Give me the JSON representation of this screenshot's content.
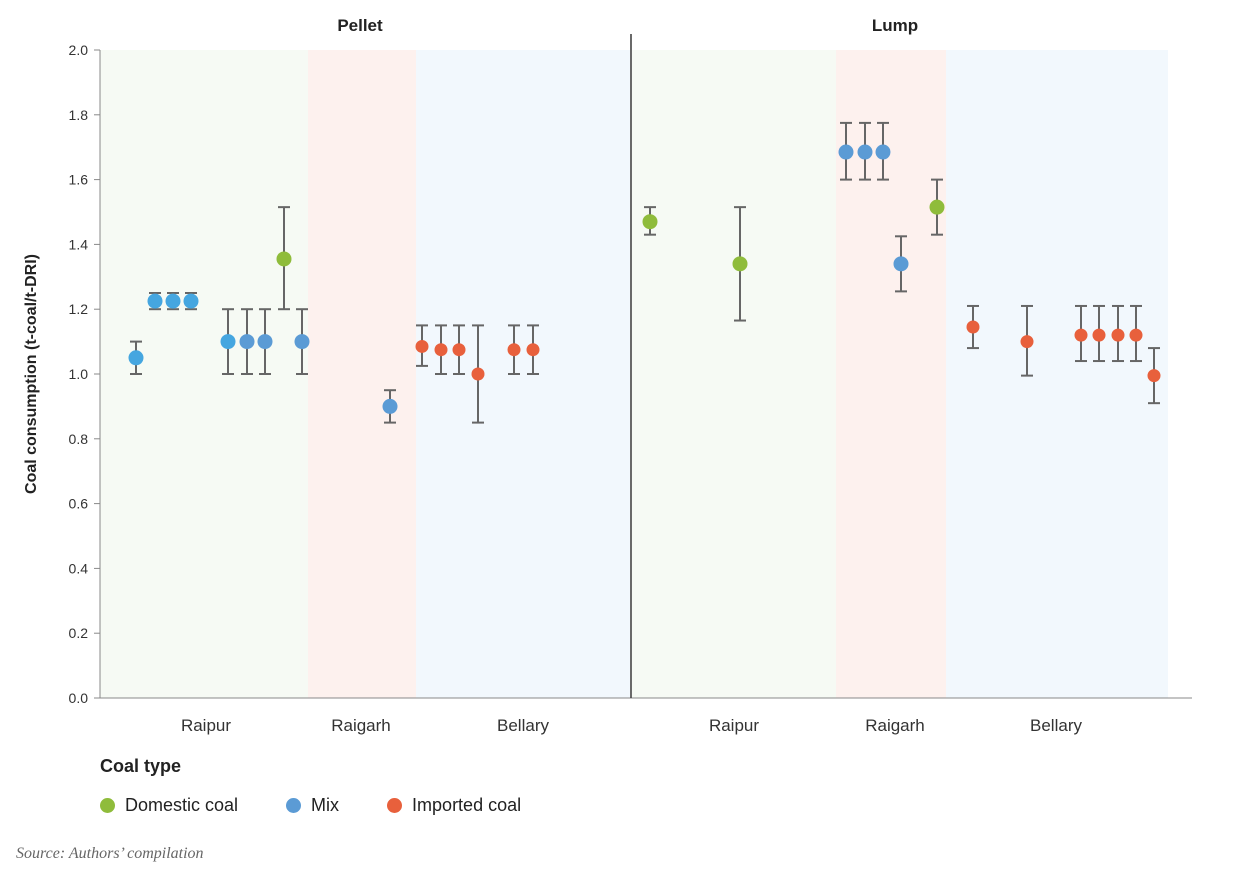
{
  "chart_data": {
    "type": "scatter",
    "ylabel": "Coal consumption (t-coal/t-DRI)",
    "ylim": [
      0,
      2.0
    ],
    "yticks": [
      "0.0",
      "0.2",
      "0.4",
      "0.6",
      "0.8",
      "1.0",
      "1.2",
      "1.4",
      "1.6",
      "1.8",
      "2.0"
    ],
    "grid": false,
    "legend_placement": "bottom-left",
    "colors": {
      "Domestic coal": "#8fbc3b",
      "Mix": "#5b9bd5",
      "Mix-light": "#45a6e0",
      "Imported coal": "#e8603c",
      "error_bar": "#666666",
      "region_Raipur": "#f6faf4",
      "region_Raigarh": "#fdf1ee",
      "region_Bellary": "#f2f8fd"
    },
    "panels": [
      {
        "title": "Pellet",
        "regions": [
          "Raipur",
          "Raigarh",
          "Bellary"
        ],
        "points": [
          {
            "region": "Raipur",
            "coal_type": "Mix",
            "y": 1.05,
            "low": 1.0,
            "high": 1.1
          },
          {
            "region": "Raipur",
            "coal_type": "Mix",
            "y": 1.225,
            "low": 1.2,
            "high": 1.25
          },
          {
            "region": "Raipur",
            "coal_type": "Mix",
            "y": 1.225,
            "low": 1.2,
            "high": 1.25
          },
          {
            "region": "Raipur",
            "coal_type": "Mix",
            "y": 1.225,
            "low": 1.2,
            "high": 1.25
          },
          {
            "region": "Raipur",
            "coal_type": "Mix",
            "y": 1.1,
            "low": 1.0,
            "high": 1.2
          },
          {
            "region": "Raipur",
            "coal_type": "Mix",
            "y": 1.1,
            "low": 1.0,
            "high": 1.2
          },
          {
            "region": "Raipur",
            "coal_type": "Mix",
            "y": 1.1,
            "low": 1.0,
            "high": 1.2
          },
          {
            "region": "Raipur",
            "coal_type": "Domestic coal",
            "y": 1.355,
            "low": 1.2,
            "high": 1.515
          },
          {
            "region": "Raipur",
            "coal_type": "Mix",
            "y": 1.1,
            "low": 1.0,
            "high": 1.2
          },
          {
            "region": "Raigarh",
            "coal_type": "Mix",
            "y": 0.9,
            "low": 0.85,
            "high": 0.95
          },
          {
            "region": "Bellary",
            "coal_type": "Imported coal",
            "y": 1.085,
            "low": 1.025,
            "high": 1.15
          },
          {
            "region": "Bellary",
            "coal_type": "Imported coal",
            "y": 1.075,
            "low": 1.0,
            "high": 1.15
          },
          {
            "region": "Bellary",
            "coal_type": "Imported coal",
            "y": 1.075,
            "low": 1.0,
            "high": 1.15
          },
          {
            "region": "Bellary",
            "coal_type": "Imported coal",
            "y": 1.0,
            "low": 0.85,
            "high": 1.15
          },
          {
            "region": "Bellary",
            "coal_type": "Imported coal",
            "y": 1.075,
            "low": 1.0,
            "high": 1.15
          },
          {
            "region": "Bellary",
            "coal_type": "Imported coal",
            "y": 1.075,
            "low": 1.0,
            "high": 1.15
          }
        ]
      },
      {
        "title": "Lump",
        "regions": [
          "Raipur",
          "Raigarh",
          "Bellary"
        ],
        "points": [
          {
            "region": "Raipur",
            "coal_type": "Domestic coal",
            "y": 1.47,
            "low": 1.43,
            "high": 1.515
          },
          {
            "region": "Raipur",
            "coal_type": "Domestic coal",
            "y": 1.34,
            "low": 1.165,
            "high": 1.515
          },
          {
            "region": "Raigarh",
            "coal_type": "Mix",
            "y": 1.685,
            "low": 1.6,
            "high": 1.775
          },
          {
            "region": "Raigarh",
            "coal_type": "Mix",
            "y": 1.685,
            "low": 1.6,
            "high": 1.775
          },
          {
            "region": "Raigarh",
            "coal_type": "Mix",
            "y": 1.685,
            "low": 1.6,
            "high": 1.775
          },
          {
            "region": "Raigarh",
            "coal_type": "Mix",
            "y": 1.34,
            "low": 1.255,
            "high": 1.425
          },
          {
            "region": "Raigarh",
            "coal_type": "Domestic coal",
            "y": 1.515,
            "low": 1.43,
            "high": 1.6
          },
          {
            "region": "Bellary",
            "coal_type": "Imported coal",
            "y": 1.145,
            "low": 1.08,
            "high": 1.21
          },
          {
            "region": "Bellary",
            "coal_type": "Imported coal",
            "y": 1.1,
            "low": 0.995,
            "high": 1.21
          },
          {
            "region": "Bellary",
            "coal_type": "Imported coal",
            "y": 1.12,
            "low": 1.04,
            "high": 1.21
          },
          {
            "region": "Bellary",
            "coal_type": "Imported coal",
            "y": 1.12,
            "low": 1.04,
            "high": 1.21
          },
          {
            "region": "Bellary",
            "coal_type": "Imported coal",
            "y": 1.12,
            "low": 1.04,
            "high": 1.21
          },
          {
            "region": "Bellary",
            "coal_type": "Imported coal",
            "y": 1.12,
            "low": 1.04,
            "high": 1.21
          },
          {
            "region": "Bellary",
            "coal_type": "Imported coal",
            "y": 0.995,
            "low": 0.91,
            "high": 1.08
          }
        ]
      }
    ]
  },
  "legend": {
    "title": "Coal type",
    "items": [
      {
        "label": "Domestic coal",
        "color": "#8fbc3b"
      },
      {
        "label": "Mix",
        "color": "#5b9bd5"
      },
      {
        "label": "Imported coal",
        "color": "#e8603c"
      }
    ]
  },
  "source": "Source: Authors’ compilation"
}
